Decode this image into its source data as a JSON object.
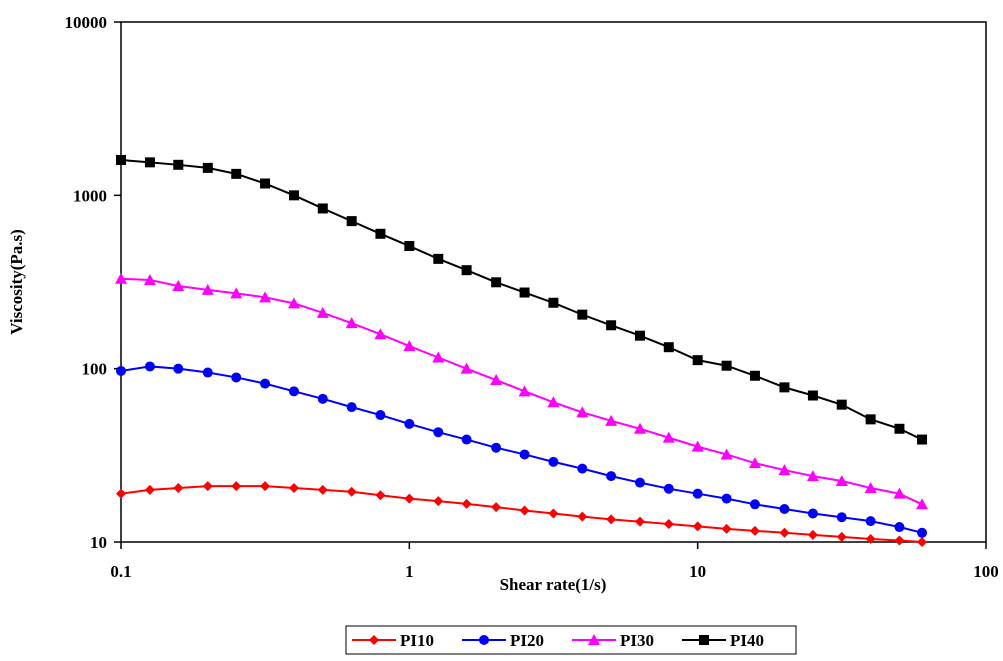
{
  "chart_data": {
    "type": "line",
    "x_label": "Shear rate(1/s)",
    "y_label": "Viscosity(Pa.s)",
    "x": [
      0.1,
      0.126,
      0.158,
      0.2,
      0.251,
      0.316,
      0.398,
      0.501,
      0.631,
      0.794,
      1,
      1.26,
      1.58,
      2,
      2.51,
      3.16,
      3.98,
      5.01,
      6.31,
      7.94,
      10,
      12.6,
      15.8,
      20,
      25.1,
      31.6,
      39.8,
      50.1,
      60
    ],
    "series": [
      {
        "name": "PI10",
        "color": "#ff0000",
        "marker": "diamond",
        "values": [
          19,
          20,
          20.5,
          21,
          21,
          21,
          20.5,
          20,
          19.5,
          18.6,
          17.8,
          17.2,
          16.6,
          15.9,
          15.2,
          14.6,
          14,
          13.5,
          13.1,
          12.7,
          12.3,
          11.9,
          11.6,
          11.3,
          11,
          10.7,
          10.4,
          10.2,
          10
        ]
      },
      {
        "name": "PI20",
        "color": "#0000ff",
        "marker": "circle",
        "values": [
          97,
          103,
          100,
          95,
          89,
          82,
          74,
          67,
          60,
          54,
          48,
          43,
          39,
          35,
          32,
          29,
          26.5,
          24,
          22,
          20.3,
          19,
          17.8,
          16.5,
          15.5,
          14.6,
          13.9,
          13.2,
          12.2,
          11.3
        ]
      },
      {
        "name": "PI30",
        "color": "#ff00ff",
        "marker": "triangle",
        "values": [
          330,
          325,
          300,
          285,
          272,
          258,
          238,
          210,
          183,
          158,
          135,
          116,
          100,
          86,
          74,
          64,
          56,
          50,
          45,
          40,
          35.5,
          32,
          28.5,
          26,
          24,
          22.5,
          20.5,
          19,
          16.5
        ]
      },
      {
        "name": "PI40",
        "color": "#000000",
        "marker": "square",
        "values": [
          1600,
          1550,
          1500,
          1440,
          1330,
          1170,
          1000,
          840,
          710,
          600,
          510,
          430,
          370,
          315,
          275,
          240,
          205,
          178,
          155,
          133,
          112,
          104,
          91,
          78,
          70,
          62,
          51,
          45,
          39
        ]
      }
    ],
    "xlim": [
      0.1,
      100
    ],
    "ylim": [
      10,
      10000
    ],
    "xticks": [
      0.1,
      1,
      10,
      100
    ],
    "yticks": [
      10,
      100,
      1000,
      10000
    ],
    "xscale": "log",
    "yscale": "log",
    "legend": "bottom"
  }
}
